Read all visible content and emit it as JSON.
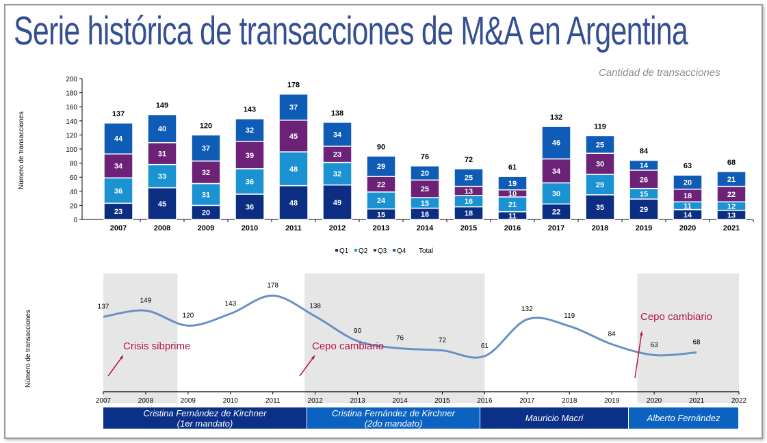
{
  "title": "Serie histórica de transacciones de M&A en Argentina",
  "subtitle": "Cantidad de transacciones",
  "colors": {
    "Q1": "#0b2e83",
    "Q2": "#1b93d3",
    "Q3": "#6c2377",
    "Q4": "#0f5cb6",
    "line": "#6a8fc4",
    "annotation": "#b5174a",
    "shade": "#e6e6e6"
  },
  "chart_data": [
    {
      "type": "bar",
      "stacked": true,
      "ylabel": "Número de transacciones",
      "ylim": [
        0,
        200
      ],
      "yticks": [
        0,
        20,
        40,
        60,
        80,
        100,
        120,
        140,
        160,
        180,
        200
      ],
      "categories": [
        "2007",
        "2008",
        "2009",
        "2010",
        "2011",
        "2012",
        "2013",
        "2014",
        "2015",
        "2016",
        "2017",
        "2018",
        "2019",
        "2020",
        "2021"
      ],
      "series": [
        {
          "name": "Q1",
          "values": [
            23,
            45,
            20,
            36,
            48,
            49,
            15,
            16,
            18,
            11,
            22,
            35,
            29,
            14,
            13
          ]
        },
        {
          "name": "Q2",
          "values": [
            36,
            33,
            31,
            36,
            48,
            32,
            24,
            15,
            16,
            21,
            30,
            29,
            15,
            11,
            12
          ]
        },
        {
          "name": "Q3",
          "values": [
            34,
            31,
            32,
            39,
            45,
            23,
            22,
            25,
            13,
            10,
            34,
            30,
            26,
            18,
            22
          ]
        },
        {
          "name": "Q4",
          "values": [
            44,
            40,
            37,
            32,
            37,
            34,
            29,
            20,
            25,
            19,
            46,
            25,
            14,
            20,
            21
          ]
        }
      ],
      "totals": [
        137,
        149,
        120,
        143,
        178,
        138,
        90,
        76,
        72,
        61,
        132,
        119,
        84,
        63,
        68
      ],
      "legend": [
        "Q1",
        "Q2",
        "Q3",
        "Q4",
        "Total"
      ],
      "legend_position": "bottom"
    },
    {
      "type": "line",
      "ylabel": "Número de transacciones",
      "xticks": [
        "2007",
        "2008",
        "2009",
        "2010",
        "2011",
        "2012",
        "2013",
        "2014",
        "2015",
        "2016",
        "2017",
        "2018",
        "2019",
        "2020",
        "2021",
        "2022"
      ],
      "x": [
        2007,
        2008,
        2009,
        2010,
        2011,
        2012,
        2013,
        2014,
        2015,
        2016,
        2017,
        2018,
        2019,
        2020,
        2021
      ],
      "y": [
        137,
        149,
        120,
        143,
        178,
        138,
        90,
        76,
        72,
        61,
        132,
        119,
        84,
        63,
        68
      ],
      "shaded_periods": [
        [
          2007,
          2008.75
        ],
        [
          2011.75,
          2016
        ],
        [
          2019.6,
          2022
        ]
      ],
      "annotations": [
        {
          "text": "Crisis sibprime"
        },
        {
          "text": "Cepo cambiario"
        },
        {
          "text": "Cepo cambiario"
        }
      ],
      "governments": [
        {
          "name": "Cristina Fernández de Kirchner",
          "sub": "(1er mandato)",
          "color": "#0b3088"
        },
        {
          "name": "Cristina Fernández de Kirchner",
          "sub": "(2do mandato)",
          "color": "#0b62c0"
        },
        {
          "name": "Mauricio Macri",
          "sub": "",
          "color": "#0b3088"
        },
        {
          "name": "Alberto Fernández",
          "sub": "",
          "color": "#0b62c0"
        }
      ]
    }
  ]
}
